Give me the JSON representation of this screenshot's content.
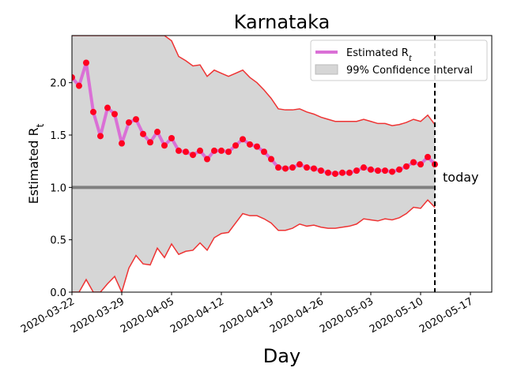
{
  "chart_data": {
    "type": "line",
    "title": "Karnataka",
    "xlabel": "Day",
    "ylabel": "Estimated R_t",
    "x_start": "2020-03-22",
    "x_ticks": [
      "2020-03-22",
      "2020-03-29",
      "2020-04-05",
      "2020-04-12",
      "2020-04-19",
      "2020-04-26",
      "2020-05-03",
      "2020-05-10",
      "2020-05-17"
    ],
    "xlim": [
      "2020-03-22",
      "2020-05-20"
    ],
    "ylim": [
      0,
      2.45
    ],
    "y_ticks": [
      "0.0",
      "0.5",
      "1.0",
      "1.5",
      "2.0"
    ],
    "reference_line": {
      "y": 1.0,
      "color": "#808080"
    },
    "today": {
      "x": "2020-05-12",
      "label": "today"
    },
    "legend": {
      "position": "top-right",
      "entries": [
        {
          "label": "Estimated R",
          "subscript": "t",
          "type": "line",
          "color": "#da70d6"
        },
        {
          "label": "99% Confidence Interval",
          "type": "patch",
          "color": "#d6d6d6"
        }
      ]
    },
    "series": [
      {
        "name": "Estimated R_t",
        "color": "#da70d6",
        "marker_color": "#ff0020",
        "dates": [
          "2020-03-22",
          "2020-03-23",
          "2020-03-24",
          "2020-03-25",
          "2020-03-26",
          "2020-03-27",
          "2020-03-28",
          "2020-03-29",
          "2020-03-30",
          "2020-03-31",
          "2020-04-01",
          "2020-04-02",
          "2020-04-03",
          "2020-04-04",
          "2020-04-05",
          "2020-04-06",
          "2020-04-07",
          "2020-04-08",
          "2020-04-09",
          "2020-04-10",
          "2020-04-11",
          "2020-04-12",
          "2020-04-13",
          "2020-04-14",
          "2020-04-15",
          "2020-04-16",
          "2020-04-17",
          "2020-04-18",
          "2020-04-19",
          "2020-04-20",
          "2020-04-21",
          "2020-04-22",
          "2020-04-23",
          "2020-04-24",
          "2020-04-25",
          "2020-04-26",
          "2020-04-27",
          "2020-04-28",
          "2020-04-29",
          "2020-04-30",
          "2020-05-01",
          "2020-05-02",
          "2020-05-03",
          "2020-05-04",
          "2020-05-05",
          "2020-05-06",
          "2020-05-07",
          "2020-05-08",
          "2020-05-09",
          "2020-05-10",
          "2020-05-11",
          "2020-05-12"
        ],
        "values": [
          2.05,
          1.97,
          2.19,
          1.72,
          1.49,
          1.76,
          1.7,
          1.42,
          1.62,
          1.65,
          1.51,
          1.43,
          1.53,
          1.4,
          1.47,
          1.35,
          1.34,
          1.31,
          1.35,
          1.27,
          1.35,
          1.35,
          1.34,
          1.4,
          1.46,
          1.41,
          1.39,
          1.34,
          1.27,
          1.19,
          1.18,
          1.19,
          1.22,
          1.19,
          1.18,
          1.16,
          1.14,
          1.13,
          1.14,
          1.14,
          1.16,
          1.19,
          1.17,
          1.16,
          1.16,
          1.15,
          1.17,
          1.2,
          1.24,
          1.22,
          1.29,
          1.22
        ]
      }
    ],
    "confidence_interval": {
      "upper": [
        2.45,
        2.45,
        2.45,
        2.45,
        2.45,
        2.45,
        2.45,
        2.45,
        2.45,
        2.45,
        2.45,
        2.45,
        2.45,
        2.45,
        2.4,
        2.25,
        2.21,
        2.16,
        2.17,
        2.06,
        2.12,
        2.09,
        2.06,
        2.09,
        2.12,
        2.05,
        2.0,
        1.93,
        1.85,
        1.75,
        1.74,
        1.74,
        1.75,
        1.72,
        1.7,
        1.67,
        1.65,
        1.63,
        1.63,
        1.63,
        1.63,
        1.65,
        1.63,
        1.61,
        1.61,
        1.59,
        1.6,
        1.62,
        1.65,
        1.63,
        1.69,
        1.6
      ],
      "lower": [
        0.0,
        0.0,
        0.12,
        0.0,
        0.0,
        0.08,
        0.15,
        0.0,
        0.23,
        0.35,
        0.27,
        0.26,
        0.42,
        0.33,
        0.46,
        0.36,
        0.39,
        0.4,
        0.47,
        0.4,
        0.52,
        0.56,
        0.57,
        0.66,
        0.75,
        0.73,
        0.73,
        0.7,
        0.66,
        0.59,
        0.59,
        0.61,
        0.65,
        0.63,
        0.64,
        0.62,
        0.61,
        0.61,
        0.62,
        0.63,
        0.65,
        0.7,
        0.69,
        0.68,
        0.7,
        0.69,
        0.71,
        0.75,
        0.81,
        0.8,
        0.88,
        0.81
      ],
      "fill_color": "#d6d6d6",
      "edge_color": "#ee3333"
    }
  }
}
